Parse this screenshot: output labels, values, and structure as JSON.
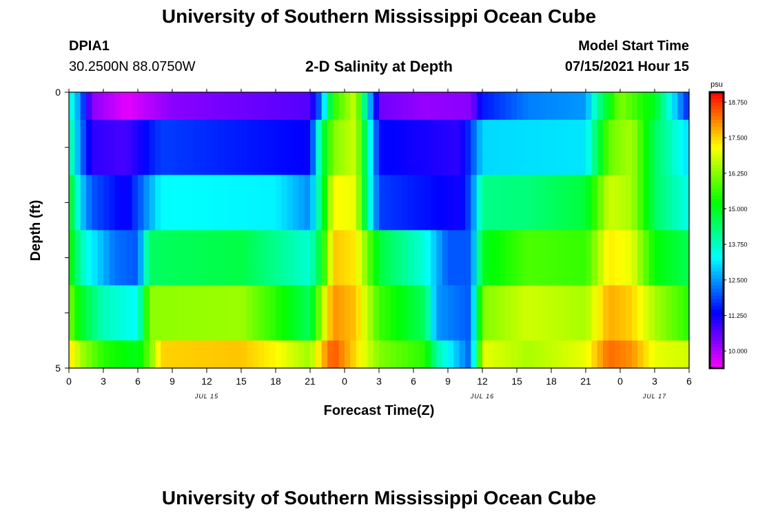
{
  "header": {
    "title": "University of Southern Mississippi Ocean Cube",
    "station_id": "DPIA1",
    "coordinates": "30.2500N  88.0750W",
    "chart_title": "2-D Salinity at Depth",
    "model_start_label": "Model Start Time",
    "model_start_value": "07/15/2021 Hour 15"
  },
  "footer": {
    "title": "University of Southern Mississippi Ocean Cube"
  },
  "chart_data": {
    "type": "heatmap",
    "title": "2-D Salinity at Depth",
    "xlabel": "Forecast Time(Z)",
    "ylabel": "Depth (ft)",
    "x_hours": [
      0,
      54
    ],
    "y_range": [
      0,
      5
    ],
    "y_tick_labels": [
      "0",
      "",
      "",
      "",
      "",
      "5"
    ],
    "x_tick_labels": [
      "0",
      "3",
      "6",
      "9",
      "12",
      "15",
      "18",
      "21",
      "0",
      "3",
      "6",
      "9",
      "12",
      "15",
      "18",
      "21",
      "0",
      "3",
      "6"
    ],
    "date_labels": [
      {
        "text": "JUL 15",
        "hour": 12
      },
      {
        "text": "JUL 16",
        "hour": 36
      },
      {
        "text": "JUL 17",
        "hour": 51
      }
    ],
    "colorbar": {
      "unit": "psu",
      "min": 9.4,
      "max": 19.1,
      "tick_values": [
        "10.000",
        "11.250",
        "12.500",
        "13.750",
        "15.000",
        "16.250",
        "17.500",
        "18.750"
      ]
    },
    "layers": [
      {
        "depth": "0-0.5 ft",
        "knots": [
          [
            0,
            13.8
          ],
          [
            1,
            12.3
          ],
          [
            2,
            10.3
          ],
          [
            5,
            9.6
          ],
          [
            9,
            10.3
          ],
          [
            21,
            10.7
          ],
          [
            22,
            12.4
          ],
          [
            23,
            15.5
          ],
          [
            25,
            16.8
          ],
          [
            26,
            13.3
          ],
          [
            27,
            10.5
          ],
          [
            31,
            10.2
          ],
          [
            35,
            10.3
          ],
          [
            36,
            11.5
          ],
          [
            40,
            12.3
          ],
          [
            45,
            12.5
          ],
          [
            46,
            14.0
          ],
          [
            48,
            16.2
          ],
          [
            51,
            15.0
          ],
          [
            54,
            11.5
          ]
        ]
      },
      {
        "depth": "0.5-1.5 ft",
        "knots": [
          [
            0,
            14.3
          ],
          [
            1,
            12.3
          ],
          [
            2,
            11.0
          ],
          [
            5,
            10.8
          ],
          [
            8,
            11.8
          ],
          [
            21,
            11.3
          ],
          [
            22,
            14.5
          ],
          [
            23,
            16.2
          ],
          [
            25,
            16.8
          ],
          [
            26,
            14.0
          ],
          [
            27,
            11.4
          ],
          [
            34,
            11.0
          ],
          [
            35,
            11.8
          ],
          [
            36,
            13.0
          ],
          [
            45,
            13.1
          ],
          [
            47,
            16.0
          ],
          [
            49,
            16.5
          ],
          [
            51,
            14.5
          ],
          [
            54,
            13.0
          ]
        ]
      },
      {
        "depth": "1.5-2.5 ft",
        "knots": [
          [
            0,
            15.3
          ],
          [
            1,
            13.0
          ],
          [
            2,
            12.0
          ],
          [
            5,
            11.2
          ],
          [
            8,
            13.3
          ],
          [
            18,
            13.2
          ],
          [
            21,
            12.4
          ],
          [
            22,
            14.5
          ],
          [
            23,
            17.2
          ],
          [
            25,
            17.0
          ],
          [
            26,
            14.0
          ],
          [
            27,
            11.8
          ],
          [
            34,
            11.2
          ],
          [
            35,
            12.0
          ],
          [
            36,
            14.2
          ],
          [
            40,
            14.3
          ],
          [
            45,
            14.8
          ],
          [
            47,
            16.8
          ],
          [
            49,
            16.5
          ],
          [
            51,
            14.5
          ],
          [
            54,
            13.4
          ]
        ]
      },
      {
        "depth": "2.5-3.5 ft",
        "knots": [
          [
            0,
            15.5
          ],
          [
            1,
            13.9
          ],
          [
            2,
            13.2
          ],
          [
            4,
            12.2
          ],
          [
            6,
            12.0
          ],
          [
            7,
            14.5
          ],
          [
            15,
            14.7
          ],
          [
            21,
            13.6
          ],
          [
            22,
            15.0
          ],
          [
            23,
            17.6
          ],
          [
            25,
            17.3
          ],
          [
            27,
            14.8
          ],
          [
            31,
            13.5
          ],
          [
            33,
            12.0
          ],
          [
            35,
            12.0
          ],
          [
            36,
            15.0
          ],
          [
            40,
            15.8
          ],
          [
            45,
            15.6
          ],
          [
            47,
            17.3
          ],
          [
            49,
            17.0
          ],
          [
            51,
            15.2
          ],
          [
            54,
            14.6
          ]
        ]
      },
      {
        "depth": "3.5-4.5 ft",
        "knots": [
          [
            0,
            16.2
          ],
          [
            1,
            15.0
          ],
          [
            3,
            13.8
          ],
          [
            6,
            13.3
          ],
          [
            7,
            16.3
          ],
          [
            15,
            16.4
          ],
          [
            18,
            15.5
          ],
          [
            21,
            14.5
          ],
          [
            22,
            16.5
          ],
          [
            23,
            18.0
          ],
          [
            25,
            17.6
          ],
          [
            27,
            15.7
          ],
          [
            31,
            14.5
          ],
          [
            32,
            12.5
          ],
          [
            35,
            12.0
          ],
          [
            36,
            16.2
          ],
          [
            40,
            16.8
          ],
          [
            45,
            16.5
          ],
          [
            47,
            17.8
          ],
          [
            49,
            17.5
          ],
          [
            51,
            16.5
          ],
          [
            54,
            15.5
          ]
        ]
      },
      {
        "depth": "4.5-5 ft",
        "knots": [
          [
            0,
            17.5
          ],
          [
            1,
            16.5
          ],
          [
            3,
            15.5
          ],
          [
            6,
            15.0
          ],
          [
            7,
            16.0
          ],
          [
            8,
            17.5
          ],
          [
            15,
            17.6
          ],
          [
            18,
            17.2
          ],
          [
            21,
            16.4
          ],
          [
            22,
            17.6
          ],
          [
            23,
            18.5
          ],
          [
            25,
            17.4
          ],
          [
            27,
            16.2
          ],
          [
            31,
            15.5
          ],
          [
            32,
            14.0
          ],
          [
            35,
            12.0
          ],
          [
            36,
            17.0
          ],
          [
            40,
            16.5
          ],
          [
            45,
            17.0
          ],
          [
            47,
            18.3
          ],
          [
            49,
            18.0
          ],
          [
            51,
            17.0
          ],
          [
            54,
            16.8
          ]
        ]
      }
    ]
  }
}
